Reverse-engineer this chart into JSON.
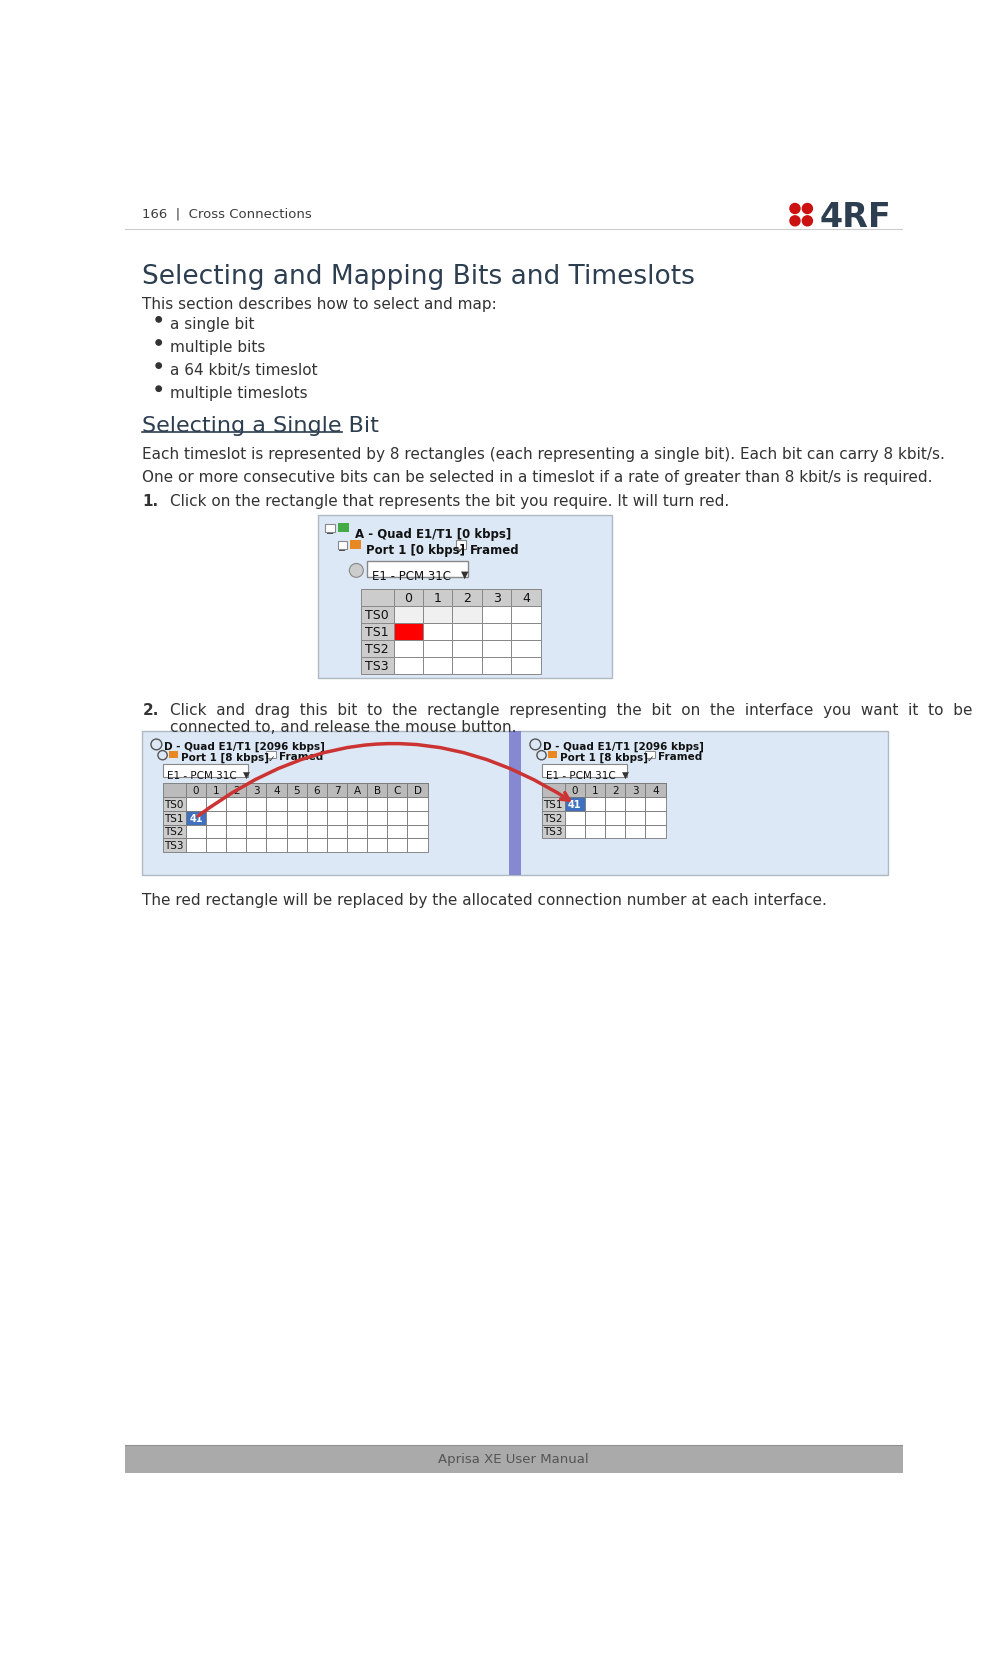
{
  "page_header": "166  |  Cross Connections",
  "page_footer": "Aprisa XE User Manual",
  "title1": "Selecting and Mapping Bits and Timeslots",
  "intro": "This section describes how to select and map:",
  "bullets": [
    "a single bit",
    "multiple bits",
    "a 64 kbit/s timeslot",
    "multiple timeslots"
  ],
  "title2": "Selecting a Single Bit",
  "para1": "Each timeslot is represented by 8 rectangles (each representing a single bit). Each bit can carry 8 kbit/s.",
  "para2": "One or more consecutive bits can be selected in a timeslot if a rate of greater than 8 kbit/s is required.",
  "step1_label": "1.",
  "step1_text": "Click on the rectangle that represents the bit you require. It will turn red.",
  "step2_label": "2.",
  "step2_line1": "Click  and  drag  this  bit  to  the  rectangle  representing  the  bit  on  the  interface  you  want  it  to  be",
  "step2_line2": "connected to, and release the mouse button.",
  "caption": "The red rectangle will be replaced by the allocated connection number at each interface.",
  "bg_color": "#ffffff",
  "header_text_color": "#3d3d3d",
  "footer_bg": "#aaaaaa",
  "footer_text_color": "#555555",
  "title1_color": "#2c3e50",
  "title2_color": "#2c3e50",
  "body_color": "#333333",
  "screenshot_bg": "#dce8f5",
  "screenshot_border": "#b0b8c4",
  "grid_bg_dark": "#cccccc",
  "grid_bg_light": "#f0f0f0",
  "grid_white": "#ffffff",
  "red_cell": "#ff0000",
  "blue_cell": "#4070c0",
  "grid_border": "#888888",
  "sep_color": "#8888bb",
  "arrow_color": "#cc3333",
  "logo_red": "#cc1111",
  "logo_dark": "#2c3e50"
}
